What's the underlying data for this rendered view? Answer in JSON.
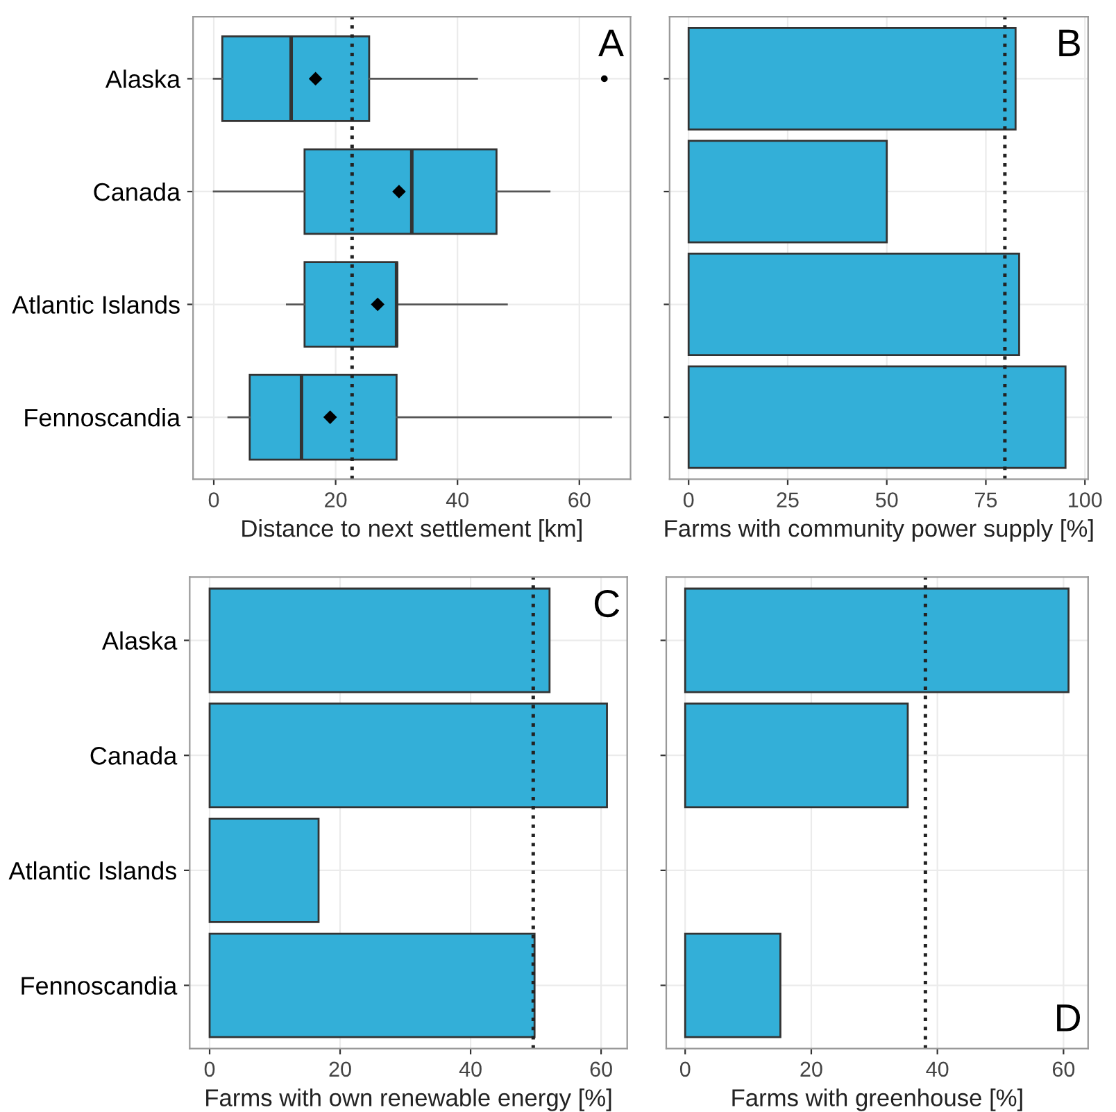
{
  "chart_data": [
    {
      "type": "box",
      "orientation": "horizontal",
      "categories": [
        "Alaska",
        "Canada",
        "Atlantic Islands",
        "Fennoscandia"
      ],
      "xlabel": "Distance to next settlement [km]",
      "color": "#33afd8",
      "boxes": [
        {
          "low": 0,
          "q1": 1.4,
          "median": 12.7,
          "q3": 25.5,
          "high": 43.2,
          "mean": 16.7,
          "outliers": [
            64.1
          ]
        },
        {
          "low": 0,
          "q1": 14.9,
          "median": 32.5,
          "q3": 46.4,
          "high": 55.1,
          "mean": 30.4
        },
        {
          "low": 12.0,
          "q1": 14.9,
          "median": 30.0,
          "q3": 30.1,
          "high": 48.1,
          "mean": 26.9
        },
        {
          "low": 2.4,
          "q1": 5.9,
          "median": 14.4,
          "q3": 30.0,
          "high": 65.2,
          "mean": 19.1
        }
      ],
      "xlim": [
        -3.4,
        68.4
      ],
      "xticks": [
        0,
        20,
        40,
        60
      ],
      "grid": true,
      "ref_lines": [
        {
          "axis": "x",
          "value": 22.7,
          "line_style": "dotted"
        }
      ],
      "annotations": [
        "A"
      ]
    },
    {
      "type": "bar",
      "orientation": "horizontal",
      "categories": [
        null,
        null,
        null,
        null
      ],
      "xlabel": "Farms with community power supply [%]",
      "color": "#33afd8",
      "values": [
        82.5,
        50.0,
        83.4,
        95.1
      ],
      "xlim": [
        -4.8,
        100.8
      ],
      "xticks": [
        0,
        25,
        50,
        75,
        100
      ],
      "grid": true,
      "tick_labels": "x",
      "ref_lines": [
        {
          "axis": "x",
          "value": 79.8,
          "line_style": "dotted"
        }
      ],
      "annotations": [
        "B"
      ]
    },
    {
      "type": "bar",
      "orientation": "horizontal",
      "categories": [
        "Alaska",
        "Canada",
        "Atlantic Islands",
        "Fennoscandia"
      ],
      "xlabel": "Farms with own renewable energy [%]",
      "color": "#33afd8",
      "values": [
        52.1,
        60.9,
        16.7,
        49.8
      ],
      "xlim": [
        -3.05,
        64.0
      ],
      "xticks": [
        0,
        20,
        40,
        60
      ],
      "grid": true,
      "ref_lines": [
        {
          "axis": "x",
          "value": 49.6,
          "line_style": "dotted"
        }
      ],
      "annotations": [
        "C"
      ]
    },
    {
      "type": "bar",
      "orientation": "horizontal",
      "categories": [
        null,
        null,
        null,
        null
      ],
      "xlabel": "Farms with greenhouse [%]",
      "color": "#33afd8",
      "values": [
        60.8,
        35.3,
        null,
        15.1
      ],
      "xlim": [
        -3.0,
        63.9
      ],
      "xticks": [
        0,
        20,
        40,
        60
      ],
      "grid": true,
      "tick_labels": "x",
      "ref_lines": [
        {
          "axis": "x",
          "value": 38.1,
          "line_style": "dotted"
        }
      ],
      "annotations": [
        "D"
      ]
    }
  ]
}
